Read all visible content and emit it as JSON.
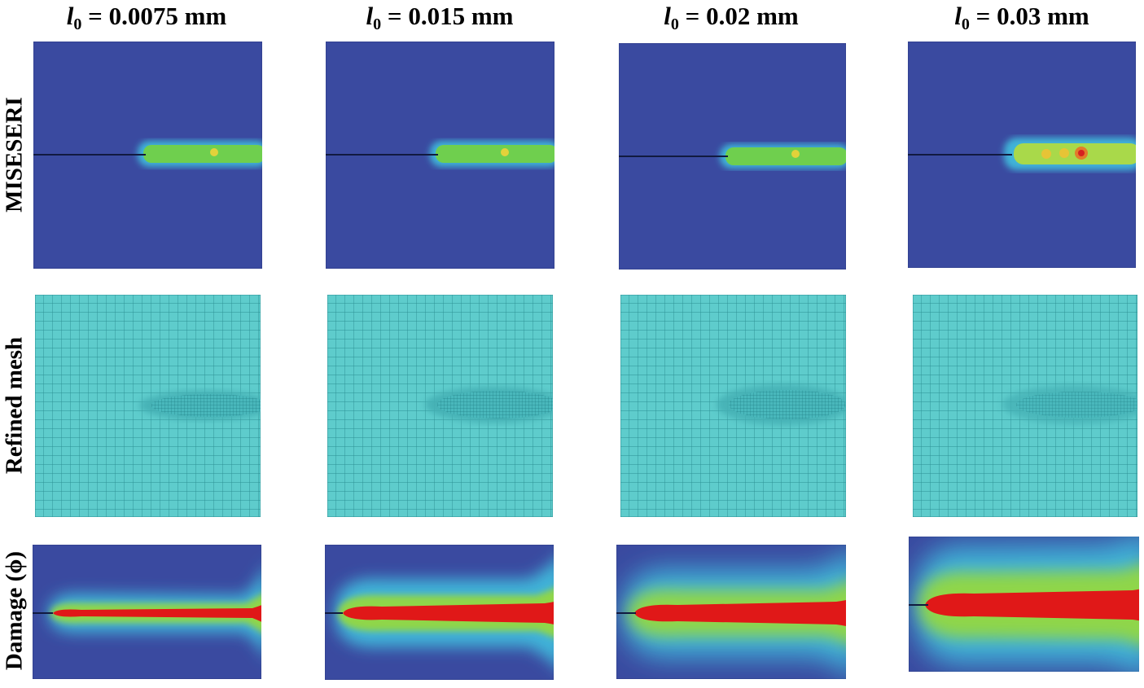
{
  "figure": {
    "columns": [
      {
        "symbol": "l",
        "subscript": "0",
        "value_text": " = 0.0075 mm"
      },
      {
        "symbol": "l",
        "subscript": "0",
        "value_text": " = 0.015 mm"
      },
      {
        "symbol": "l",
        "subscript": "0",
        "value_text": " = 0.02 mm"
      },
      {
        "symbol": "l",
        "subscript": "0",
        "value_text": " = 0.03 mm"
      }
    ],
    "rows": [
      {
        "label": "MISESERI",
        "kind": "stress-field"
      },
      {
        "label": "Refined mesh",
        "kind": "mesh"
      },
      {
        "label": "Damage (ϕ)",
        "kind": "damage-field"
      }
    ]
  },
  "colors": {
    "field_background": "#3a4aa0",
    "mesh": "#5ecccc",
    "mesh_line": "#2b8f93",
    "damage_peak": "#e01818",
    "stress_band": "#6fcf4e"
  }
}
